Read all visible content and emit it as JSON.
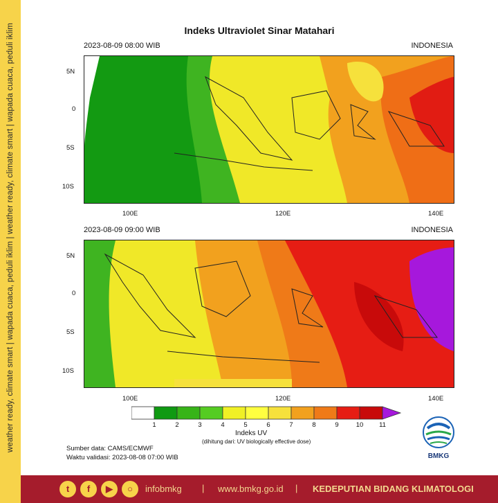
{
  "sidebar_text": "weather ready, climate smart | wapada cuaca, peduli iklim | weather ready, climate smart | wapada cuaca, peduli iklim",
  "title": "Indeks Ultraviolet Sinar Matahari",
  "panels": [
    {
      "timestamp": "2023-08-09  08:00 WIB",
      "region": "INDONESIA"
    },
    {
      "timestamp": "2023-08-09  09:00 WIB",
      "region": "INDONESIA"
    }
  ],
  "lat_ticks": [
    "5N",
    "0",
    "5S",
    "10S"
  ],
  "lon_ticks": [
    "100E",
    "120E",
    "140E"
  ],
  "colorbar": {
    "labels": [
      "1",
      "2",
      "3",
      "4",
      "5",
      "6",
      "7",
      "8",
      "9",
      "10",
      "11"
    ],
    "colors": [
      "#ffffff",
      "#0f9a12",
      "#37b418",
      "#55cc22",
      "#f0f025",
      "#ffff40",
      "#f6e13c",
      "#f2a11e",
      "#ef7a18",
      "#e61d14",
      "#c80a0a",
      "#a618dc"
    ],
    "title": "Indeks UV",
    "subtitle": "(dihitung dari: UV biologically effective dose)"
  },
  "source": "Sumber data: CAMS/ECMWF",
  "validation": "Waktu validasi: 2023-08-08 07:00 WIB",
  "logo_text": "BMKG",
  "footer": {
    "handle": "infobmkg",
    "separator": "|",
    "website": "www.bmkg.go.id",
    "department": "KEDEPUTIAN BIDANG KLIMATOLOGI"
  }
}
